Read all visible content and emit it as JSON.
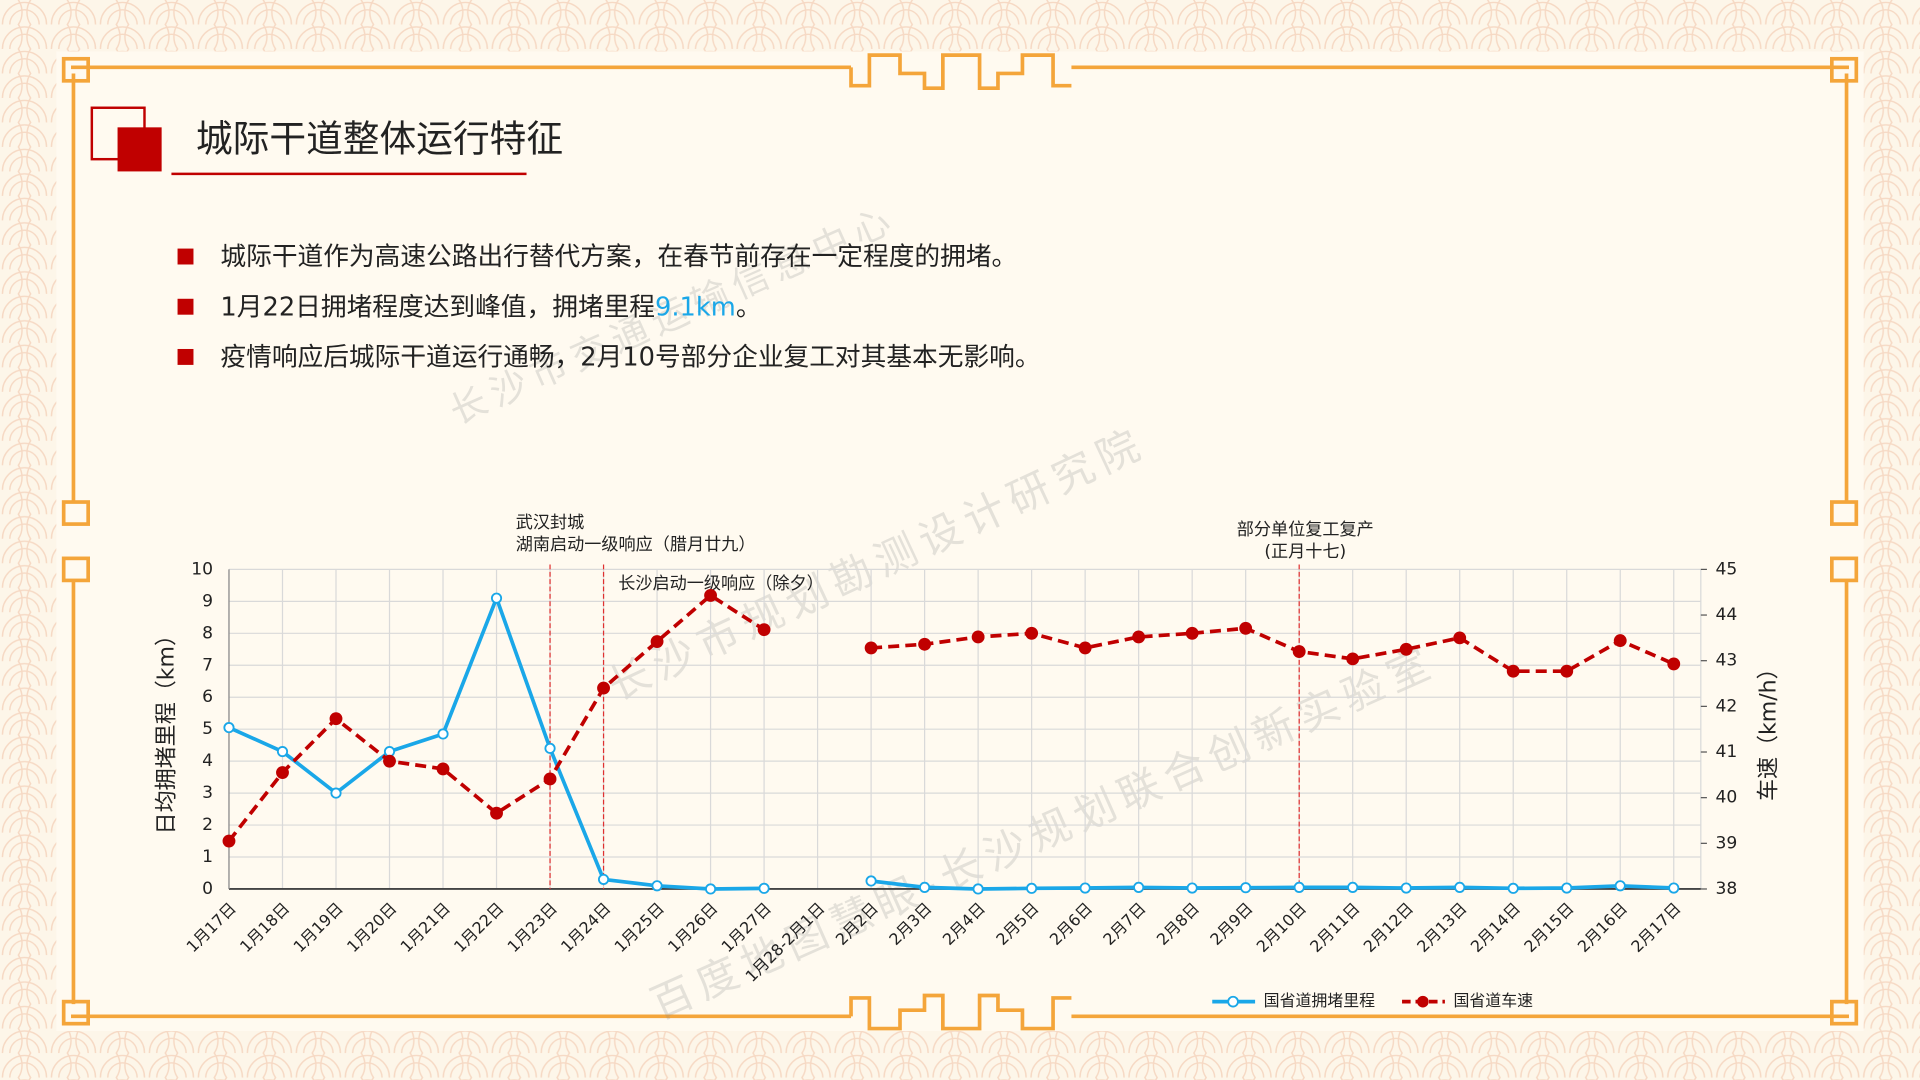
{
  "header": {
    "title": "城际干道整体运行特征"
  },
  "bullets": [
    [
      {
        "text": "城际干道作为高速公路出行替代方案，在春节前存在一定程度的拥堵。"
      }
    ],
    [
      {
        "text": "1月22日拥堵程度达到峰值，拥堵里程"
      },
      {
        "text": "9.1km",
        "color": "#1aa7e8"
      },
      {
        "text": "。"
      }
    ],
    [
      {
        "text": "疫情响应后城际干道运行通畅，2月10号部分企业复工对其基本无影响。"
      }
    ]
  ],
  "watermarks": [
    "长沙市交通运输信息中心",
    "长沙市规划勘测设计研究院",
    "百度地图慧眼-长沙规划联合创新实验室"
  ],
  "chart_data": {
    "type": "line",
    "ylabel": "日均拥堵里程（km）",
    "y2label": "车速（km/h）",
    "categories": [
      "1月17日",
      "1月18日",
      "1月19日",
      "1月20日",
      "1月21日",
      "1月22日",
      "1月23日",
      "1月24日",
      "1月25日",
      "1月26日",
      "1月27日",
      "1月28-2月1日",
      "2月2日",
      "2月3日",
      "2月4日",
      "2月5日",
      "2月6日",
      "2月7日",
      "2月8日",
      "2月9日",
      "2月10日",
      "2月11日",
      "2月12日",
      "2月13日",
      "2月14日",
      "2月15日",
      "2月16日",
      "2月17日"
    ],
    "series": [
      {
        "name": "国省道拥堵里程",
        "color": "#1aa7e8",
        "axis": "y",
        "values": [
          5.05,
          4.3,
          3.0,
          4.3,
          4.85,
          9.1,
          4.4,
          0.3,
          0.1,
          0.0,
          0.02,
          null,
          0.25,
          0.05,
          0.0,
          0.02,
          0.03,
          0.05,
          0.03,
          0.04,
          0.05,
          0.05,
          0.03,
          0.05,
          0.02,
          0.03,
          0.1,
          0.03
        ]
      },
      {
        "name": "国省道车速",
        "color": "#c00000",
        "axis": "y2",
        "values": [
          39.05,
          40.55,
          41.73,
          40.8,
          40.63,
          39.66,
          40.41,
          42.4,
          43.42,
          44.43,
          43.68,
          null,
          43.28,
          43.36,
          43.52,
          43.6,
          43.28,
          43.52,
          43.6,
          43.71,
          43.2,
          43.04,
          43.25,
          43.5,
          42.77,
          42.77,
          43.44,
          42.93
        ]
      }
    ],
    "ylim": [
      0,
      10
    ],
    "yticks": [
      0,
      1,
      2,
      3,
      4,
      5,
      6,
      7,
      8,
      9,
      10
    ],
    "y2lim": [
      38,
      45
    ],
    "y2ticks": [
      38,
      39,
      40,
      41,
      42,
      43,
      44,
      45
    ],
    "grid": true,
    "legend": "bottom-right",
    "annotations": [
      {
        "x": "1月23日",
        "lines": [
          "武汉封城",
          "湖南启动一级响应（腊月廿九）"
        ]
      },
      {
        "x": "1月24日",
        "lines": [
          "长沙启动一级响应（除夕）"
        ]
      },
      {
        "x": "2月10日",
        "lines": [
          "部分单位复工复产",
          "(正月十七)"
        ]
      }
    ]
  }
}
